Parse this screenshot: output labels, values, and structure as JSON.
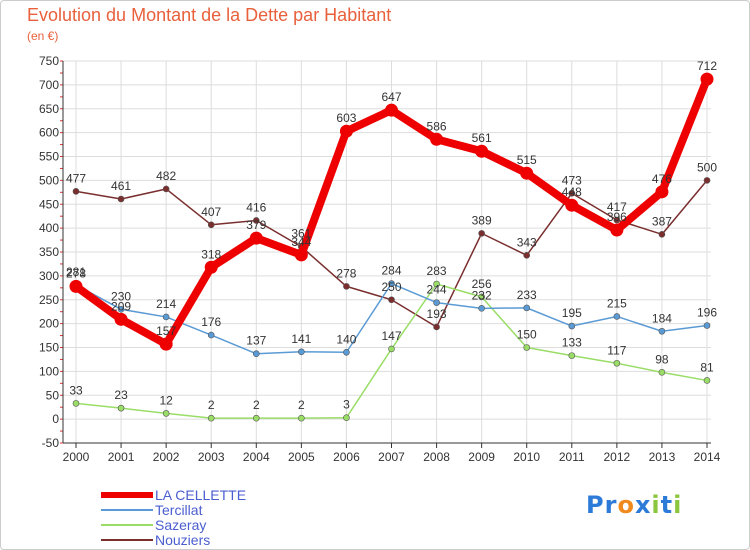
{
  "title": "Evolution du Montant de la Dette par Habitant",
  "subtitle": "(en €)",
  "brand": {
    "text": "Proxiti",
    "letters": [
      "P",
      "r",
      "o",
      "x",
      "i",
      "t",
      "i"
    ],
    "colors": [
      "#2d7bd8",
      "#2d7bd8",
      "#f08a1d",
      "#2d7bd8",
      "#8cc63f",
      "#2d7bd8",
      "#8cc63f"
    ]
  },
  "chart_data": {
    "type": "line",
    "title": "Evolution du Montant de la Dette par Habitant",
    "ylabel": "(en €)",
    "xlabel": "",
    "ylim": [
      -50,
      750
    ],
    "yticks": [
      -50,
      0,
      50,
      100,
      150,
      200,
      250,
      300,
      350,
      400,
      450,
      500,
      550,
      600,
      650,
      700,
      750
    ],
    "x": [
      "2000",
      "2001",
      "2002",
      "2003",
      "2004",
      "2005",
      "2006",
      "2007",
      "2008",
      "2009",
      "2010",
      "2011",
      "2012",
      "2013",
      "2014"
    ],
    "grid": true,
    "legend_position": "bottom-left",
    "series": [
      {
        "name": "LA CELLETTE",
        "color": "#ee0000",
        "values": [
          278,
          209,
          157,
          318,
          379,
          344,
          603,
          647,
          586,
          561,
          515,
          448,
          396,
          476,
          712
        ]
      },
      {
        "name": "Tercillat",
        "color": "#5b9bd5",
        "values": [
          281,
          230,
          214,
          176,
          137,
          141,
          140,
          284,
          244,
          232,
          233,
          195,
          215,
          184,
          196
        ]
      },
      {
        "name": "Sazeray",
        "color": "#99dd66",
        "values": [
          33,
          23,
          12,
          2,
          2,
          2,
          3,
          147,
          283,
          256,
          150,
          133,
          117,
          98,
          81
        ]
      },
      {
        "name": "Nouziers",
        "color": "#7a2e2e",
        "values": [
          477,
          461,
          482,
          407,
          416,
          361,
          278,
          250,
          193,
          389,
          343,
          473,
          417,
          387,
          500
        ]
      }
    ]
  }
}
